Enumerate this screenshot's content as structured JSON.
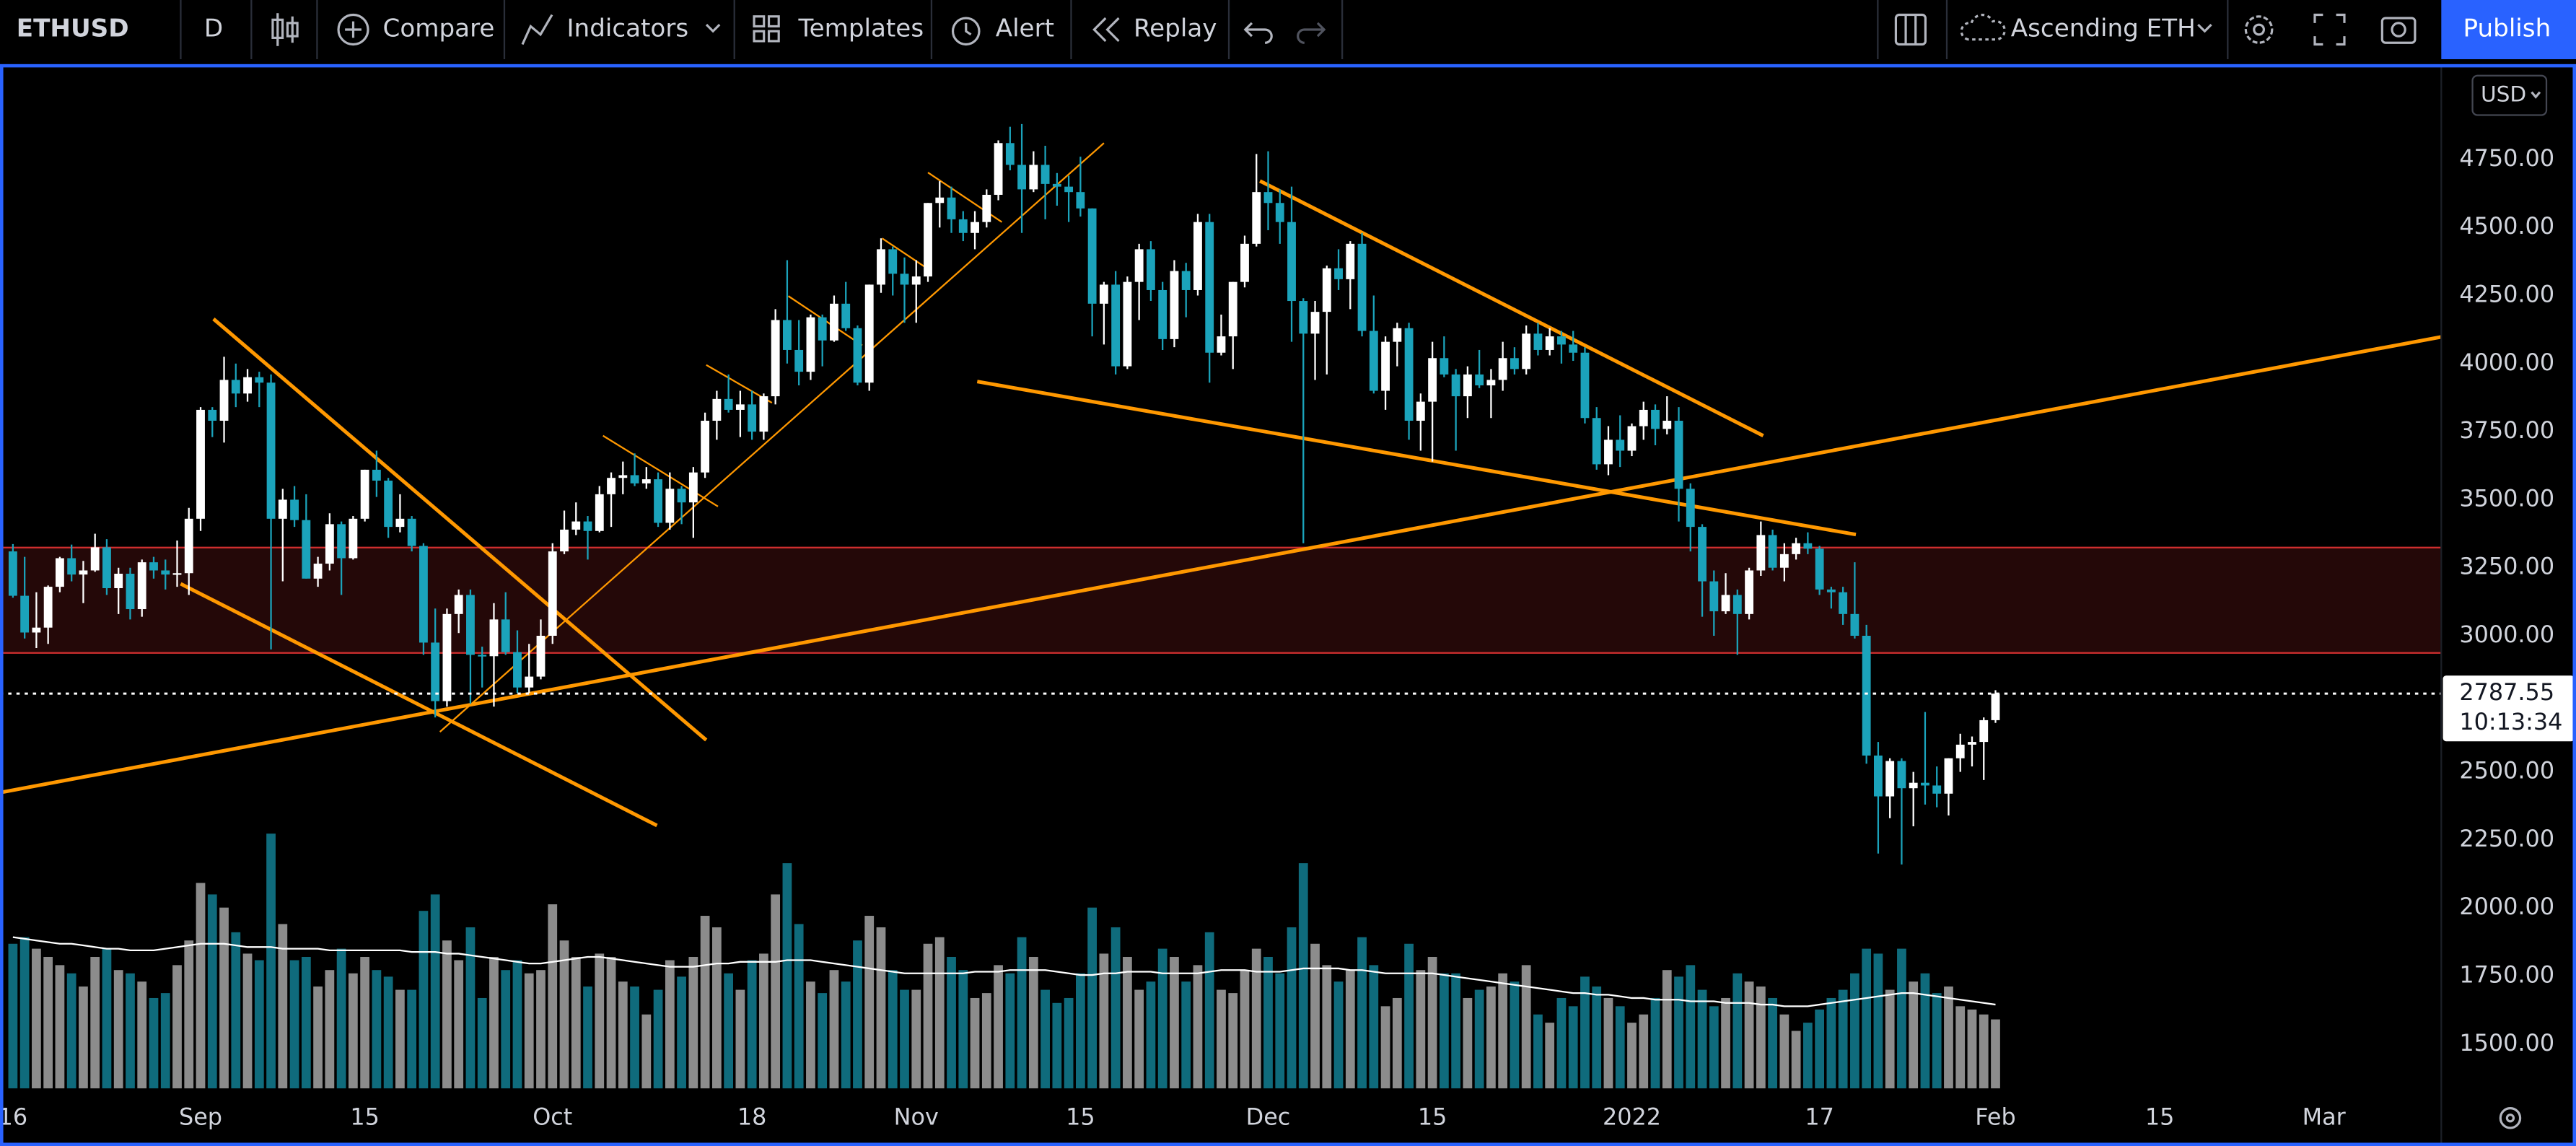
{
  "toolbar": {
    "symbol": "ETHUSD",
    "interval": "D",
    "compare": "Compare",
    "indicators": "Indicators",
    "templates": "Templates",
    "alert": "Alert",
    "replay": "Replay",
    "layout_name": "Ascending ETH",
    "publish": "Publish"
  },
  "currency": "USD",
  "countdown": "10:13:34",
  "chart_data": {
    "type": "candlestick",
    "x": [
      0,
      1,
      2,
      3,
      4,
      5,
      6,
      7,
      8,
      9,
      10,
      11,
      12,
      13,
      14,
      15,
      16,
      17,
      18,
      19,
      20,
      21,
      22,
      23,
      24,
      25,
      26,
      27,
      28,
      29,
      30,
      31,
      32,
      33,
      34,
      35,
      36,
      37,
      38,
      39,
      40,
      41,
      42,
      43,
      44,
      45,
      46,
      47,
      48,
      49,
      50,
      51,
      52,
      53,
      54,
      55,
      56,
      57,
      58,
      59,
      60,
      61,
      62,
      63,
      64,
      65,
      66,
      67,
      68,
      69,
      70,
      71,
      72,
      73,
      74,
      75,
      76,
      77,
      78,
      79,
      80,
      81,
      82,
      83,
      84,
      85,
      86,
      87,
      88,
      89,
      90,
      91,
      92,
      93,
      94,
      95,
      96,
      97,
      98,
      99,
      100,
      101,
      102,
      103,
      104,
      105,
      106,
      107,
      108,
      109,
      110,
      111,
      112,
      113,
      114,
      115,
      116,
      117,
      118,
      119,
      120,
      121,
      122,
      123,
      124,
      125,
      126,
      127,
      128,
      129,
      130,
      131,
      132,
      133,
      134,
      135,
      136,
      137,
      138,
      139,
      140,
      141,
      142,
      143,
      144,
      145,
      146,
      147,
      148,
      149,
      150,
      151,
      152,
      153,
      154,
      155,
      156,
      157,
      158,
      159,
      160,
      161,
      162,
      163,
      164,
      165,
      166,
      167,
      168,
      169
    ],
    "open": [
      3310,
      3147,
      3012,
      3030,
      3180,
      3285,
      3225,
      3240,
      3325,
      3175,
      3228,
      3098,
      3270,
      3240,
      3225,
      3230,
      3430,
      3830,
      3790,
      3940,
      3890,
      3950,
      3930,
      3430,
      3500,
      3425,
      3210,
      3265,
      3410,
      3285,
      3430,
      3610,
      3570,
      3400,
      3430,
      3330,
      2975,
      2760,
      3080,
      3150,
      2930,
      2925,
      3060,
      2940,
      2810,
      2850,
      3000,
      3310,
      3390,
      3420,
      3385,
      3520,
      3580,
      3590,
      3560,
      3575,
      3415,
      3540,
      3490,
      3600,
      3790,
      3870,
      3830,
      3850,
      3750,
      3880,
      4160,
      4050,
      3970,
      4170,
      4085,
      4220,
      4130,
      3930,
      4290,
      4420,
      4330,
      4290,
      4320,
      4590,
      4610,
      4530,
      4480,
      4520,
      4620,
      4810,
      4730,
      4640,
      4730,
      4660,
      4650,
      4630,
      4570,
      4220,
      4290,
      3990,
      4300,
      4420,
      4270,
      4090,
      4340,
      4270,
      4520,
      4040,
      4100,
      4300,
      4440,
      4630,
      4590,
      4520,
      4230,
      4110,
      4190,
      4350,
      4310,
      4440,
      4120,
      3900,
      4080,
      4130,
      3790,
      3860,
      4020,
      3960,
      3880,
      3960,
      3920,
      3940,
      4020,
      3980,
      4110,
      4050,
      4100,
      4070,
      4040,
      3800,
      3630,
      3720,
      3680,
      3770,
      3830,
      3760,
      3790,
      3540,
      3400,
      3200,
      3090,
      3150,
      3080,
      3240,
      3370,
      3250,
      3300,
      3340,
      3320,
      3170,
      3160,
      3080,
      3000,
      2560,
      2410,
      2540,
      2440,
      2460,
      2450,
      2420,
      2550,
      2600,
      2610,
      2690
    ],
    "high": [
      3337,
      3290,
      3160,
      3185,
      3290,
      3335,
      3275,
      3375,
      3355,
      3250,
      3250,
      3280,
      3290,
      3280,
      3350,
      3470,
      3840,
      3840,
      4025,
      4000,
      3980,
      3970,
      3960,
      3540,
      3550,
      3520,
      3290,
      3450,
      3420,
      3440,
      3610,
      3680,
      3580,
      3520,
      3440,
      3340,
      3100,
      3100,
      3170,
      3170,
      2960,
      3120,
      3160,
      3020,
      2970,
      3060,
      3340,
      3460,
      3490,
      3440,
      3550,
      3600,
      3640,
      3670,
      3620,
      3600,
      3600,
      3550,
      3620,
      3820,
      3900,
      3960,
      3900,
      3900,
      3890,
      4200,
      4380,
      4160,
      4180,
      4180,
      4250,
      4300,
      4140,
      4290,
      4460,
      4430,
      4390,
      4380,
      4590,
      4670,
      4650,
      4560,
      4560,
      4640,
      4820,
      4870,
      4880,
      4780,
      4800,
      4700,
      4690,
      4760,
      4570,
      4300,
      4340,
      4320,
      4440,
      4450,
      4300,
      4380,
      4370,
      4550,
      4550,
      4180,
      4300,
      4470,
      4770,
      4780,
      4640,
      4650,
      4240,
      4230,
      4360,
      4420,
      4450,
      4480,
      4250,
      4100,
      4150,
      4150,
      3890,
      4080,
      4100,
      3980,
      3990,
      4050,
      3980,
      4080,
      4060,
      4140,
      4150,
      4130,
      4120,
      4120,
      4060,
      3840,
      3770,
      3810,
      3780,
      3860,
      3850,
      3880,
      3840,
      3560,
      3410,
      3240,
      3230,
      3170,
      3250,
      3420,
      3390,
      3340,
      3360,
      3380,
      3330,
      3180,
      3180,
      3270,
      3040,
      2610,
      2550,
      2550,
      2500,
      2720,
      2520,
      2550,
      2640,
      2630,
      2700,
      2800
    ],
    "low": [
      3140,
      2990,
      2955,
      2970,
      3160,
      3200,
      3120,
      3235,
      3150,
      3080,
      3060,
      3070,
      3210,
      3170,
      3180,
      3150,
      3385,
      3730,
      3710,
      3840,
      3860,
      3840,
      2950,
      3200,
      3400,
      3210,
      3180,
      3240,
      3150,
      3280,
      3420,
      3510,
      3360,
      3380,
      3310,
      2930,
      2700,
      2740,
      3010,
      2750,
      2810,
      2740,
      2930,
      2790,
      2790,
      2840,
      2970,
      3300,
      3370,
      3280,
      3380,
      3400,
      3520,
      3550,
      3540,
      3400,
      3390,
      3410,
      3360,
      3580,
      3720,
      3820,
      3730,
      3720,
      3720,
      3850,
      4000,
      3920,
      3940,
      3990,
      4080,
      4120,
      3920,
      3900,
      4260,
      4250,
      4150,
      4150,
      4300,
      4500,
      4480,
      4450,
      4420,
      4500,
      4600,
      4710,
      4480,
      4630,
      4530,
      4580,
      4520,
      4540,
      4100,
      4070,
      3960,
      3980,
      4160,
      4230,
      4050,
      4060,
      4170,
      4250,
      3930,
      4030,
      3980,
      4280,
      4430,
      4490,
      4440,
      4080,
      3340,
      3940,
      3960,
      4270,
      4200,
      4100,
      3890,
      3830,
      3990,
      3720,
      3680,
      3640,
      3950,
      3680,
      3800,
      3910,
      3800,
      3900,
      3960,
      3960,
      4030,
      4030,
      4000,
      4010,
      3780,
      3610,
      3590,
      3620,
      3660,
      3720,
      3700,
      3740,
      3420,
      3310,
      3070,
      3000,
      3080,
      2930,
      3060,
      3220,
      3240,
      3200,
      3280,
      3300,
      3150,
      3100,
      3040,
      2990,
      2530,
      2200,
      2330,
      2160,
      2300,
      2380,
      2370,
      2340,
      2500,
      2520,
      2470,
      2680
    ],
    "close": [
      3147,
      3012,
      3030,
      3180,
      3285,
      3225,
      3240,
      3325,
      3175,
      3228,
      3098,
      3270,
      3240,
      3225,
      3230,
      3430,
      3830,
      3790,
      3940,
      3890,
      3950,
      3930,
      3430,
      3500,
      3425,
      3210,
      3265,
      3410,
      3285,
      3430,
      3610,
      3570,
      3400,
      3430,
      3330,
      2975,
      2760,
      3080,
      3150,
      2930,
      2925,
      3060,
      2940,
      2810,
      2850,
      3000,
      3310,
      3390,
      3420,
      3385,
      3520,
      3580,
      3590,
      3560,
      3575,
      3415,
      3540,
      3490,
      3600,
      3790,
      3870,
      3830,
      3850,
      3750,
      3880,
      4160,
      4050,
      3970,
      4170,
      4085,
      4220,
      4130,
      3930,
      4290,
      4420,
      4330,
      4290,
      4320,
      4590,
      4610,
      4530,
      4480,
      4520,
      4620,
      4810,
      4730,
      4640,
      4730,
      4660,
      4650,
      4630,
      4570,
      4220,
      4290,
      3990,
      4300,
      4420,
      4270,
      4090,
      4340,
      4270,
      4520,
      4040,
      4100,
      4300,
      4440,
      4630,
      4590,
      4520,
      4230,
      4110,
      4190,
      4350,
      4310,
      4440,
      4120,
      3900,
      4080,
      4130,
      3790,
      3860,
      4020,
      3960,
      3880,
      3960,
      3920,
      3940,
      4020,
      3980,
      4110,
      4050,
      4100,
      4070,
      4040,
      3800,
      3630,
      3720,
      3680,
      3770,
      3830,
      3760,
      3790,
      3540,
      3400,
      3200,
      3090,
      3150,
      3080,
      3240,
      3370,
      3250,
      3300,
      3340,
      3320,
      3170,
      3160,
      3080,
      3000,
      2560,
      2410,
      2540,
      2440,
      2460,
      2450,
      2420,
      2550,
      2600,
      2610,
      2690,
      2787.55
    ],
    "volume": [
      88,
      92,
      85,
      80,
      75,
      70,
      62,
      80,
      85,
      72,
      70,
      65,
      55,
      58,
      75,
      90,
      125,
      118,
      110,
      95,
      82,
      78,
      155,
      100,
      78,
      80,
      62,
      72,
      85,
      70,
      80,
      72,
      68,
      60,
      60,
      108,
      118,
      90,
      78,
      98,
      55,
      80,
      72,
      78,
      70,
      72,
      112,
      90,
      80,
      62,
      82,
      80,
      65,
      62,
      45,
      60,
      78,
      68,
      80,
      105,
      98,
      70,
      60,
      78,
      82,
      118,
      137,
      100,
      65,
      58,
      72,
      65,
      90,
      105,
      98,
      72,
      60,
      60,
      88,
      92,
      80,
      72,
      55,
      58,
      75,
      70,
      92,
      80,
      60,
      52,
      55,
      70,
      110,
      82,
      98,
      80,
      60,
      65,
      85,
      80,
      65,
      75,
      95,
      60,
      58,
      72,
      85,
      80,
      70,
      98,
      137,
      88,
      75,
      65,
      72,
      92,
      75,
      50,
      55,
      88,
      72,
      80,
      70,
      70,
      55,
      60,
      62,
      70,
      65,
      75,
      45,
      40,
      55,
      50,
      68,
      62,
      55,
      50,
      40,
      45,
      55,
      72,
      68,
      75,
      60,
      50,
      55,
      70,
      65,
      62,
      55,
      45,
      35,
      40,
      48,
      55,
      60,
      70,
      85,
      82,
      60,
      85,
      65,
      70,
      58,
      62,
      50,
      48,
      45,
      42
    ],
    "volume_ma": [
      92,
      91,
      90,
      89,
      88,
      88,
      87,
      86,
      85,
      85,
      84,
      84,
      84,
      85,
      86,
      87,
      88,
      88,
      88,
      87,
      86,
      86,
      86,
      85,
      85,
      85,
      85,
      84,
      84,
      84,
      84,
      84,
      84,
      84,
      83,
      83,
      83,
      82,
      82,
      81,
      80,
      79,
      78,
      77,
      76,
      76,
      77,
      78,
      79,
      80,
      80,
      79,
      78,
      77,
      76,
      75,
      74,
      74,
      74,
      75,
      76,
      76,
      77,
      77,
      77,
      77,
      78,
      78,
      78,
      77,
      76,
      75,
      74,
      73,
      72,
      71,
      70,
      70,
      70,
      70,
      70,
      70,
      71,
      71,
      71,
      72,
      72,
      72,
      72,
      71,
      70,
      69,
      69,
      70,
      70,
      71,
      71,
      71,
      70,
      70,
      70,
      70,
      71,
      72,
      72,
      72,
      71,
      71,
      71,
      72,
      73,
      73,
      73,
      73,
      72,
      72,
      71,
      70,
      70,
      70,
      70,
      70,
      69,
      68,
      67,
      66,
      65,
      64,
      63,
      62,
      61,
      60,
      59,
      58,
      58,
      57,
      57,
      56,
      55,
      55,
      54,
      54,
      54,
      53,
      53,
      53,
      52,
      52,
      52,
      51,
      51,
      50,
      50,
      50,
      51,
      52,
      53,
      54,
      55,
      56,
      57,
      58,
      58,
      57,
      56,
      55,
      54,
      53,
      52,
      51
    ],
    "up_color": "#ffffff",
    "down_color": "#1ba3bb",
    "volume_up_color": "#8c8c8c",
    "volume_down_color": "#0f6b7c",
    "volume_ma_color": "#ffffff",
    "xlim": [
      -1.1,
      207
    ],
    "ylim": [
      1337,
      5082
    ],
    "xticks": [
      {
        "value": 0,
        "label": "16"
      },
      {
        "value": 16,
        "label": "Sep"
      },
      {
        "value": 30,
        "label": "15"
      },
      {
        "value": 46,
        "label": "Oct"
      },
      {
        "value": 63,
        "label": "18"
      },
      {
        "value": 77,
        "label": "Nov"
      },
      {
        "value": 91,
        "label": "15"
      },
      {
        "value": 107,
        "label": "Dec"
      },
      {
        "value": 121,
        "label": "15"
      },
      {
        "value": 138,
        "label": "2022"
      },
      {
        "value": 154,
        "label": "17"
      },
      {
        "value": 169,
        "label": "Feb"
      },
      {
        "value": 183,
        "label": "15"
      },
      {
        "value": 197,
        "label": "Mar"
      }
    ],
    "yticks": [
      {
        "value": 1500,
        "label": "1500.00"
      },
      {
        "value": 1750,
        "label": "1750.00"
      },
      {
        "value": 2000,
        "label": "2000.00"
      },
      {
        "value": 2250,
        "label": "2250.00"
      },
      {
        "value": 2500,
        "label": "2500.00"
      },
      {
        "value": 2750,
        "label": "2750.00"
      },
      {
        "value": 3000,
        "label": "3000.00"
      },
      {
        "value": 3250,
        "label": "3250.00"
      },
      {
        "value": 3500,
        "label": "3500.00"
      },
      {
        "value": 3750,
        "label": "3750.00"
      },
      {
        "value": 4000,
        "label": "4000.00"
      },
      {
        "value": 4250,
        "label": "4250.00"
      },
      {
        "value": 4500,
        "label": "4500.00"
      },
      {
        "value": 4750,
        "label": "4750.00"
      }
    ],
    "grid": false,
    "zone": [
      2937,
      3324
    ],
    "zone_color": "#d32f2f",
    "trend_color": "#ff9800",
    "trend_lines": [
      {
        "x": [
          -1.1,
          207
        ],
        "y": [
          2424,
          4098
        ]
      },
      {
        "x": [
          82.2,
          157.1
        ],
        "y": [
          3934,
          3372
        ]
      },
      {
        "x": [
          106.3,
          149.2
        ],
        "y": [
          4671,
          3735
        ]
      },
      {
        "x": [
          17.1,
          59.1
        ],
        "y": [
          4164,
          2617
        ]
      },
      {
        "x": [
          14.3,
          54.9
        ],
        "y": [
          3191,
          2303
        ]
      }
    ],
    "channel_lines": [
      {
        "x": [
          36.4,
          93
        ],
        "y": [
          2647,
          4810
        ]
      },
      {
        "x": [
          50.3,
          60.1
        ],
        "y": [
          3735,
          3475
        ]
      },
      {
        "x": [
          59.1,
          64.7
        ],
        "y": [
          3995,
          3856
        ]
      },
      {
        "x": [
          66.1,
          72.4
        ],
        "y": [
          4248,
          4067
        ]
      },
      {
        "x": [
          74.1,
          78.3
        ],
        "y": [
          4460,
          4339
        ]
      },
      {
        "x": [
          78.0,
          84.3
        ],
        "y": [
          4702,
          4520
        ]
      }
    ]
  }
}
